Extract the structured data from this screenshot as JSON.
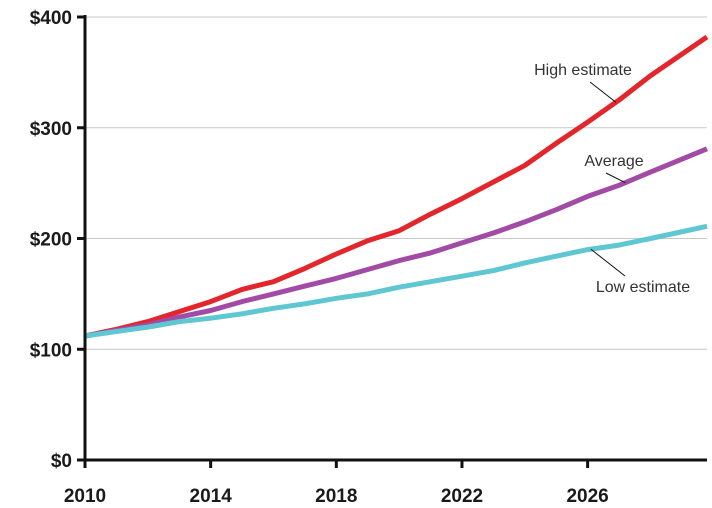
{
  "chart_data": {
    "type": "line",
    "title": "",
    "xlabel": "",
    "ylabel": "",
    "xlim": [
      2010,
      2029.8
    ],
    "ylim": [
      0,
      400
    ],
    "grid": "horizontal",
    "legend": "inline labels",
    "x_ticks": [
      2010,
      2014,
      2018,
      2022,
      2026
    ],
    "x_tick_labels": [
      "2010",
      "2014",
      "2018",
      "2022",
      "2026"
    ],
    "y_ticks": [
      0,
      100,
      200,
      300,
      400
    ],
    "y_tick_labels": [
      "$0",
      "$100",
      "$200",
      "$300",
      "$400"
    ],
    "x": [
      2010,
      2011,
      2012,
      2013,
      2014,
      2015,
      2016,
      2017,
      2018,
      2019,
      2020,
      2021,
      2022,
      2023,
      2024,
      2025,
      2026,
      2027,
      2028,
      2029.8
    ],
    "series": [
      {
        "name": "High estimate",
        "color": "#e3262b",
        "values": [
          112,
          118,
          125,
          134,
          143,
          154,
          161,
          173,
          186,
          198,
          207,
          222,
          236,
          251,
          266,
          286,
          305,
          325,
          347,
          382
        ]
      },
      {
        "name": "Average",
        "color": "#a24ba6",
        "values": [
          112,
          117,
          122,
          129,
          135,
          143,
          150,
          157,
          164,
          172,
          180,
          187,
          196,
          205,
          215,
          226,
          238,
          248,
          260,
          281
        ]
      },
      {
        "name": "Low estimate",
        "color": "#5ec7d1",
        "values": [
          112,
          116,
          120,
          125,
          128,
          132,
          137,
          141,
          146,
          150,
          156,
          161,
          166,
          171,
          178,
          184,
          190,
          194,
          200,
          211
        ]
      }
    ]
  }
}
